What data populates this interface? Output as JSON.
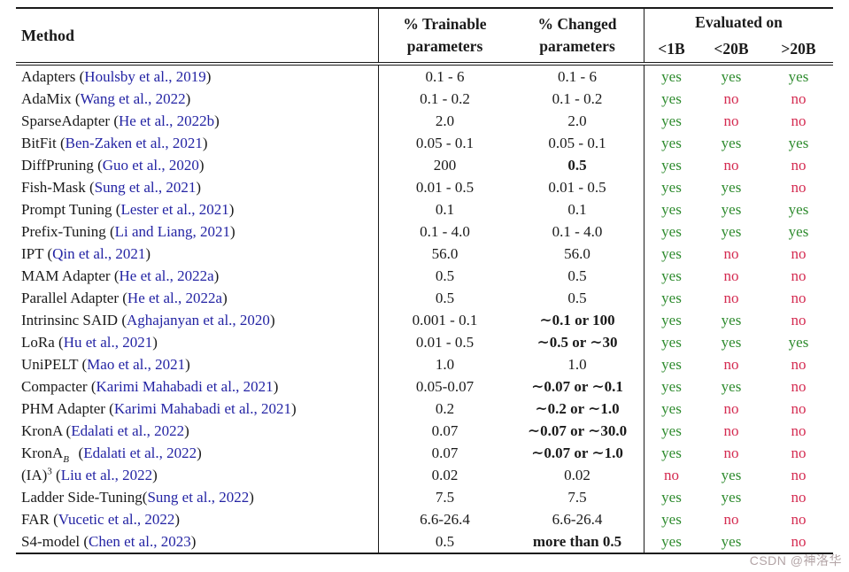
{
  "watermark": "CSDN @神洛华",
  "colors": {
    "link_blue": "#2424a4",
    "yes_green": "#2e8b2e",
    "no_red": "#d42a50"
  },
  "table": {
    "header": {
      "method": "Method",
      "trainable_line1": "% Trainable",
      "trainable_line2": "parameters",
      "changed_line1": "% Changed",
      "changed_line2": "parameters",
      "evaluated": "Evaluated on",
      "eval_col1": "<1B",
      "eval_col2": "<20B",
      "eval_col3": ">20B"
    },
    "rows": [
      {
        "name": "Adapters",
        "cite": "Houlsby et al., 2019",
        "trainable": "0.1 - 6",
        "changed": "0.1 - 6",
        "bold": false,
        "eval": [
          "yes",
          "yes",
          "yes"
        ]
      },
      {
        "name": "AdaMix",
        "cite": "Wang et al., 2022",
        "trainable": "0.1 - 0.2",
        "changed": "0.1 - 0.2",
        "bold": false,
        "eval": [
          "yes",
          "no",
          "no"
        ]
      },
      {
        "name": "SparseAdapter",
        "cite": "He et al., 2022b",
        "trainable": "2.0",
        "changed": "2.0",
        "bold": false,
        "eval": [
          "yes",
          "no",
          "no"
        ]
      },
      {
        "name": "BitFit",
        "cite": "Ben-Zaken et al., 2021",
        "trainable": "0.05 - 0.1",
        "changed": "0.05 - 0.1",
        "bold": false,
        "eval": [
          "yes",
          "yes",
          "yes"
        ]
      },
      {
        "name": "DiffPruning",
        "cite": "Guo et al., 2020",
        "trainable": "200",
        "changed": "0.5",
        "bold": true,
        "eval": [
          "yes",
          "no",
          "no"
        ]
      },
      {
        "name": "Fish-Mask",
        "cite": "Sung et al., 2021",
        "trainable": "0.01 - 0.5",
        "changed": "0.01 - 0.5",
        "bold": false,
        "eval": [
          "yes",
          "yes",
          "no"
        ]
      },
      {
        "name": "Prompt Tuning",
        "cite": "Lester et al., 2021",
        "trainable": "0.1",
        "changed": "0.1",
        "bold": false,
        "eval": [
          "yes",
          "yes",
          "yes"
        ]
      },
      {
        "name": "Prefix-Tuning",
        "cite": "Li and Liang, 2021",
        "trainable": "0.1 - 4.0",
        "changed": "0.1 - 4.0",
        "bold": false,
        "eval": [
          "yes",
          "yes",
          "yes"
        ]
      },
      {
        "name": "IPT",
        "cite": "Qin et al., 2021",
        "trainable": "56.0",
        "changed": "56.0",
        "bold": false,
        "eval": [
          "yes",
          "no",
          "no"
        ]
      },
      {
        "name": "MAM Adapter",
        "cite": "He et al., 2022a",
        "trainable": "0.5",
        "changed": "0.5",
        "bold": false,
        "eval": [
          "yes",
          "no",
          "no"
        ]
      },
      {
        "name": "Parallel Adapter",
        "cite": "He et al., 2022a",
        "trainable": "0.5",
        "changed": "0.5",
        "bold": false,
        "eval": [
          "yes",
          "no",
          "no"
        ]
      },
      {
        "name": "Intrinsinc SAID",
        "cite": "Aghajanyan et al., 2020",
        "trainable": "0.001 - 0.1",
        "changed": "∼0.1 or 100",
        "bold": true,
        "eval": [
          "yes",
          "yes",
          "no"
        ]
      },
      {
        "name": "LoRa",
        "cite": "Hu et al., 2021",
        "trainable": "0.01 - 0.5",
        "changed": "∼0.5 or ∼30",
        "bold": true,
        "eval": [
          "yes",
          "yes",
          "yes"
        ]
      },
      {
        "name": "UniPELT",
        "cite": "Mao et al., 2021",
        "trainable": "1.0",
        "changed": "1.0",
        "bold": false,
        "eval": [
          "yes",
          "no",
          "no"
        ]
      },
      {
        "name": "Compacter",
        "cite": "Karimi Mahabadi et al., 2021",
        "trainable": "0.05-0.07",
        "changed": "∼0.07 or ∼0.1",
        "bold": true,
        "eval": [
          "yes",
          "yes",
          "no"
        ]
      },
      {
        "name": "PHM Adapter",
        "cite": "Karimi Mahabadi et al., 2021",
        "trainable": "0.2",
        "changed": "∼0.2 or ∼1.0",
        "bold": true,
        "eval": [
          "yes",
          "no",
          "no"
        ]
      },
      {
        "name": "KronA",
        "cite": "Edalati et al., 2022",
        "trainable": "0.07",
        "changed": "∼0.07 or ∼30.0",
        "bold": true,
        "eval": [
          "yes",
          "no",
          "no"
        ]
      },
      {
        "name": "KronA",
        "sup": "B",
        "sub": "res",
        "cite": "Edalati et al., 2022",
        "trainable": "0.07",
        "changed": "∼0.07 or ∼1.0",
        "bold": true,
        "eval": [
          "yes",
          "no",
          "no"
        ]
      },
      {
        "name": "(IA)",
        "sup": "3",
        "cite": "Liu et al., 2022",
        "trainable": "0.02",
        "changed": "0.02",
        "bold": false,
        "eval": [
          "no",
          "yes",
          "no"
        ]
      },
      {
        "name": "Ladder Side-Tuning",
        "sep": "",
        "cite": "Sung et al., 2022",
        "trainable": "7.5",
        "changed": "7.5",
        "bold": false,
        "eval": [
          "yes",
          "yes",
          "no"
        ]
      },
      {
        "name": "FAR",
        "cite": "Vucetic et al., 2022",
        "trainable": "6.6-26.4",
        "changed": "6.6-26.4",
        "bold": false,
        "eval": [
          "yes",
          "no",
          "no"
        ]
      },
      {
        "name": "S4-model",
        "cite": "Chen et al., 2023",
        "trainable": "0.5",
        "changed": "more than 0.5",
        "bold": true,
        "eval": [
          "yes",
          "yes",
          "no"
        ]
      }
    ]
  }
}
